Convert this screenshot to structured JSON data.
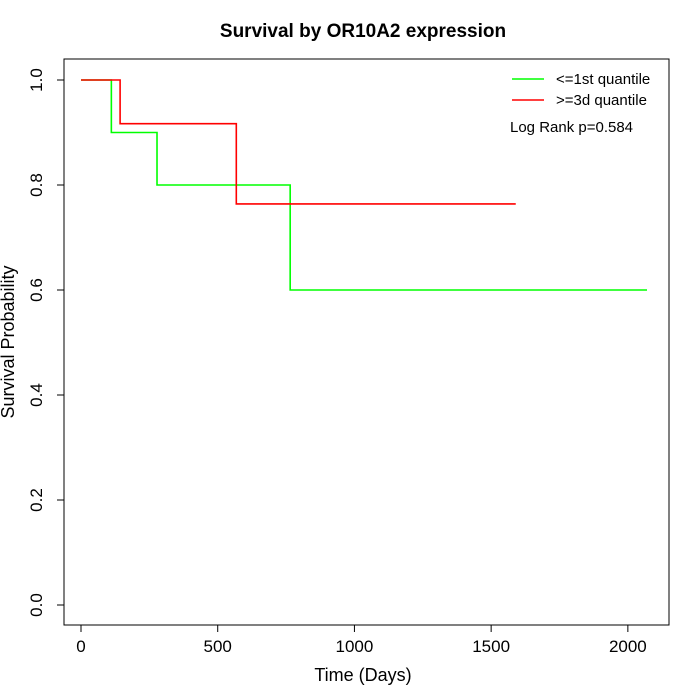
{
  "chart_data": {
    "type": "line",
    "title": "Survival by OR10A2 expression",
    "xlabel": "Time (Days)",
    "ylabel": "Survival Probability",
    "xlim": [
      0,
      2070
    ],
    "ylim": [
      0,
      1.0
    ],
    "x_ticks": [
      0,
      500,
      1000,
      1500,
      2000
    ],
    "x_tick_labels": [
      "0",
      "500",
      "1000",
      "1500",
      "2000"
    ],
    "y_ticks": [
      0.0,
      0.2,
      0.4,
      0.6,
      0.8,
      1.0
    ],
    "y_tick_labels": [
      "0.0",
      "0.2",
      "0.4",
      "0.6",
      "0.8",
      "1.0"
    ],
    "grid": false,
    "legend_position": "top-right",
    "annotation": "Log Rank p=0.584",
    "series": [
      {
        "name": "<=1st quantile",
        "color": "#00ff00",
        "step": true,
        "x": [
          0,
          111,
          278,
          765,
          2070
        ],
        "y": [
          1.0,
          0.9,
          0.8,
          0.6,
          0.6
        ]
      },
      {
        "name": ">=3d quantile",
        "color": "#ff0000",
        "step": true,
        "x": [
          0,
          143,
          568,
          1590
        ],
        "y": [
          1.0,
          0.9167,
          0.7639,
          0.7639
        ]
      }
    ]
  }
}
